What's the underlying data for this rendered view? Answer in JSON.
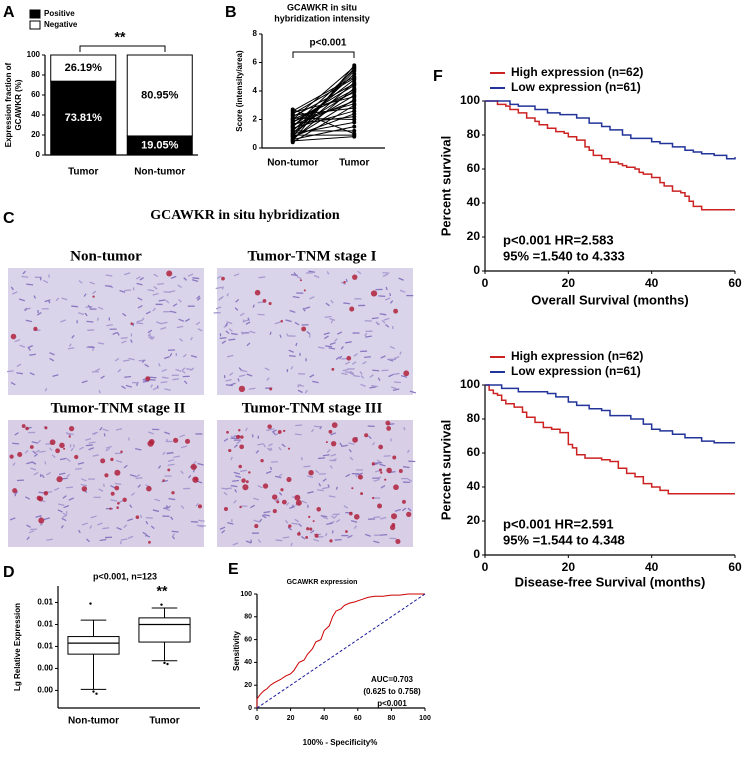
{
  "chart_data": [
    {
      "type": "bar",
      "label": "A",
      "stacked": true,
      "categories": [
        "Tumor",
        "Non-tumor"
      ],
      "series": [
        {
          "name": "Positive",
          "color": "#000000",
          "text_color": "#ffffff",
          "values": [
            73.81,
            19.05
          ],
          "value_labels": [
            "73.81%",
            "19.05%"
          ]
        },
        {
          "name": "Negative",
          "color": "#ffffff",
          "text_color": "#000000",
          "values": [
            26.19,
            80.95
          ],
          "value_labels": [
            "26.19%",
            "80.95%"
          ]
        }
      ],
      "ylabel": [
        "Expression fraction of",
        "GCAWKR (%)"
      ],
      "ylim": [
        0,
        100
      ],
      "yticks": [
        0,
        20,
        40,
        60,
        80,
        100
      ],
      "annotations": [
        "**"
      ]
    },
    {
      "type": "line",
      "label": "B",
      "markers": true,
      "title": [
        "GCAWKR in situ",
        "hybridization intensity"
      ],
      "categories": [
        "Non-tumor",
        "Tumor"
      ],
      "series": [
        {
          "color": "#000000",
          "values": [
            0.5,
            5.8
          ]
        },
        {
          "color": "#000000",
          "values": [
            0.8,
            5.6
          ]
        },
        {
          "color": "#000000",
          "values": [
            1.0,
            5.4
          ]
        },
        {
          "color": "#000000",
          "values": [
            1.2,
            5.2
          ]
        },
        {
          "color": "#000000",
          "values": [
            2.6,
            5.0
          ]
        },
        {
          "color": "#000000",
          "values": [
            2.4,
            4.9
          ]
        },
        {
          "color": "#000000",
          "values": [
            1.5,
            4.8
          ]
        },
        {
          "color": "#000000",
          "values": [
            0.9,
            4.6
          ]
        },
        {
          "color": "#000000",
          "values": [
            2.2,
            4.5
          ]
        },
        {
          "color": "#000000",
          "values": [
            1.8,
            4.4
          ]
        },
        {
          "color": "#000000",
          "values": [
            0.6,
            4.2
          ]
        },
        {
          "color": "#000000",
          "values": [
            1.3,
            4.0
          ]
        },
        {
          "color": "#000000",
          "values": [
            2.0,
            3.9
          ]
        },
        {
          "color": "#000000",
          "values": [
            1.1,
            3.7
          ]
        },
        {
          "color": "#000000",
          "values": [
            2.5,
            3.6
          ]
        },
        {
          "color": "#000000",
          "values": [
            0.7,
            3.4
          ]
        },
        {
          "color": "#000000",
          "values": [
            1.6,
            3.3
          ]
        },
        {
          "color": "#000000",
          "values": [
            1.9,
            3.1
          ]
        },
        {
          "color": "#000000",
          "values": [
            0.4,
            3.0
          ]
        },
        {
          "color": "#000000",
          "values": [
            2.3,
            2.8
          ]
        },
        {
          "color": "#000000",
          "values": [
            1.4,
            2.6
          ]
        },
        {
          "color": "#000000",
          "values": [
            0.8,
            2.4
          ]
        },
        {
          "color": "#000000",
          "values": [
            1.7,
            2.2
          ]
        },
        {
          "color": "#000000",
          "values": [
            2.1,
            2.0
          ]
        },
        {
          "color": "#000000",
          "values": [
            1.0,
            1.8
          ]
        },
        {
          "color": "#000000",
          "values": [
            0.6,
            1.5
          ]
        },
        {
          "color": "#000000",
          "values": [
            1.2,
            1.2
          ]
        },
        {
          "color": "#000000",
          "values": [
            2.7,
            1.0
          ]
        },
        {
          "color": "#000000",
          "values": [
            0.9,
            0.9
          ]
        },
        {
          "color": "#000000",
          "values": [
            0.5,
            0.8
          ]
        },
        {
          "color": "#000000",
          "values": [
            1.5,
            5.5
          ]
        },
        {
          "color": "#000000",
          "values": [
            2.0,
            5.7
          ]
        },
        {
          "color": "#000000",
          "values": [
            1.8,
            4.1
          ]
        }
      ],
      "ylabel": "Score (intensity/area)",
      "ylim": [
        0,
        8
      ],
      "yticks": [
        0,
        2,
        4,
        6,
        8
      ],
      "annotations": [
        "p<0.001"
      ]
    },
    {
      "type": "box",
      "label": "D",
      "title": "p<0.001, n=123",
      "categories": [
        "Non-tumor",
        "Tumor"
      ],
      "boxes": [
        {
          "whisker_low": 0.0021,
          "q1": 0.0053,
          "median": 0.0063,
          "q3": 0.0069,
          "whisker_high": 0.0084,
          "outliers": [
            0.0099,
            0.0019,
            0.0017
          ]
        },
        {
          "whisker_low": 0.0047,
          "q1": 0.0064,
          "median": 0.008,
          "q3": 0.0086,
          "whisker_high": 0.0095,
          "outliers": [
            0.0098,
            0.0045,
            0.0044
          ]
        }
      ],
      "ylabel": "Lg Relative Expression",
      "ylim": [
        0.0004,
        0.0115
      ],
      "yticks": [
        {
          "value": 0.002,
          "label": "0.00"
        },
        {
          "value": 0.004,
          "label": "0.00"
        },
        {
          "value": 0.006,
          "label": "0.01"
        },
        {
          "value": 0.008,
          "label": "0.01"
        },
        {
          "value": 0.01,
          "label": "0.01"
        }
      ],
      "annotations": [
        "**"
      ]
    },
    {
      "type": "line",
      "label": "E",
      "title": "GCAWKR expression",
      "x": [
        0,
        0,
        2,
        4,
        6,
        8,
        10,
        14,
        17,
        20,
        22,
        25,
        28,
        30,
        33,
        35,
        38,
        40,
        43,
        45,
        47,
        50,
        52,
        55,
        58,
        62,
        66,
        70,
        75,
        80,
        85,
        90,
        95,
        100
      ],
      "series": [
        {
          "color": "#cc0000",
          "values": [
            0,
            8,
            12,
            15,
            17,
            20,
            22,
            25,
            28,
            30,
            33,
            40,
            42,
            47,
            52,
            58,
            60,
            68,
            72,
            80,
            85,
            87,
            90,
            92,
            93,
            95,
            97,
            98,
            98,
            99,
            99,
            100,
            100,
            100
          ]
        }
      ],
      "diagonal": true,
      "diagonal_color": "#1a1a99",
      "xlabel": "100% - Specificity%",
      "ylabel": "Sensitivity",
      "xlim": [
        0,
        100
      ],
      "xticks": [
        0,
        20,
        40,
        60,
        80,
        100
      ],
      "ylim": [
        0,
        100
      ],
      "yticks": [
        0,
        20,
        40,
        60,
        80,
        100
      ],
      "annotations": [
        "AUC=0.703",
        "(0.625 to 0.758)",
        "p<0.001"
      ]
    },
    {
      "type": "line",
      "label": "F",
      "step": true,
      "series": [
        {
          "name": "High expression (n=62)",
          "color": "#cc2222",
          "x": [
            0,
            3,
            5,
            6,
            8,
            10,
            12,
            13,
            15,
            17,
            19,
            20,
            22,
            24,
            25,
            26,
            28,
            30,
            32,
            33,
            34,
            36,
            37,
            38,
            40,
            42,
            43,
            45,
            47,
            48,
            49,
            50,
            52,
            60
          ],
          "values": [
            100,
            98,
            97,
            95,
            93,
            90,
            88,
            86,
            84,
            82,
            81,
            79,
            77,
            73,
            71,
            68,
            66,
            64,
            63,
            62,
            61,
            60,
            58,
            57,
            55,
            52,
            50,
            47,
            46,
            44,
            41,
            38,
            36,
            36
          ]
        },
        {
          "name": "Low expression (n=61)",
          "color": "#22339a",
          "x": [
            0,
            6,
            8,
            12,
            15,
            18,
            22,
            25,
            28,
            30,
            33,
            35,
            40,
            42,
            45,
            48,
            50,
            52,
            55,
            58,
            60
          ],
          "values": [
            100,
            98,
            97,
            95,
            93,
            92,
            90,
            87,
            85,
            83,
            80,
            78,
            76,
            75,
            73,
            71,
            70,
            69,
            68,
            66,
            67
          ]
        }
      ],
      "xlabel": "Overall Survival (months)",
      "ylabel": "Percent survival",
      "xlim": [
        0,
        60
      ],
      "xticks": [
        0,
        20,
        40,
        60
      ],
      "ylim": [
        0,
        100
      ],
      "yticks": [
        0,
        20,
        40,
        60,
        80,
        100
      ],
      "annotations": [
        "p<0.001   HR=2.583",
        "95% =1.540 to 4.333"
      ]
    },
    {
      "type": "line",
      "step": true,
      "series": [
        {
          "name": "High expression (n=62)",
          "color": "#cc2222",
          "x": [
            0,
            1,
            2,
            3,
            4,
            5,
            7,
            9,
            10,
            12,
            14,
            16,
            18,
            20,
            21,
            22,
            24,
            28,
            30,
            32,
            34,
            36,
            38,
            40,
            42,
            44,
            60
          ],
          "values": [
            100,
            97,
            95,
            94,
            91,
            89,
            87,
            84,
            81,
            78,
            75,
            74,
            72,
            65,
            63,
            59,
            57,
            56,
            55,
            51,
            48,
            46,
            42,
            40,
            38,
            36,
            36
          ]
        },
        {
          "name": "Low expression (n=61)",
          "color": "#22339a",
          "x": [
            0,
            4,
            8,
            15,
            17,
            20,
            22,
            25,
            28,
            30,
            35,
            38,
            40,
            42,
            45,
            48,
            52,
            55,
            60
          ],
          "values": [
            100,
            98,
            96,
            95,
            93,
            90,
            88,
            86,
            85,
            82,
            80,
            77,
            74,
            73,
            71,
            69,
            67,
            66,
            66
          ]
        }
      ],
      "xlabel": "Disease-free Survival (months)",
      "ylabel": "Percent survival",
      "xlim": [
        0,
        60
      ],
      "xticks": [
        0,
        20,
        40,
        60
      ],
      "ylim": [
        0,
        100
      ],
      "yticks": [
        0,
        20,
        40,
        60,
        80,
        100
      ],
      "annotations": [
        "p<0.001   HR=2.591",
        "95% =1.544 to 4.348"
      ]
    }
  ],
  "figure_c": {
    "label": "C",
    "title": "GCAWKR in situ hybridization",
    "captions": [
      "Non-tumor",
      "Tumor-TNM stage I",
      "Tumor-TNM stage II",
      "Tumor-TNM stage III"
    ]
  }
}
